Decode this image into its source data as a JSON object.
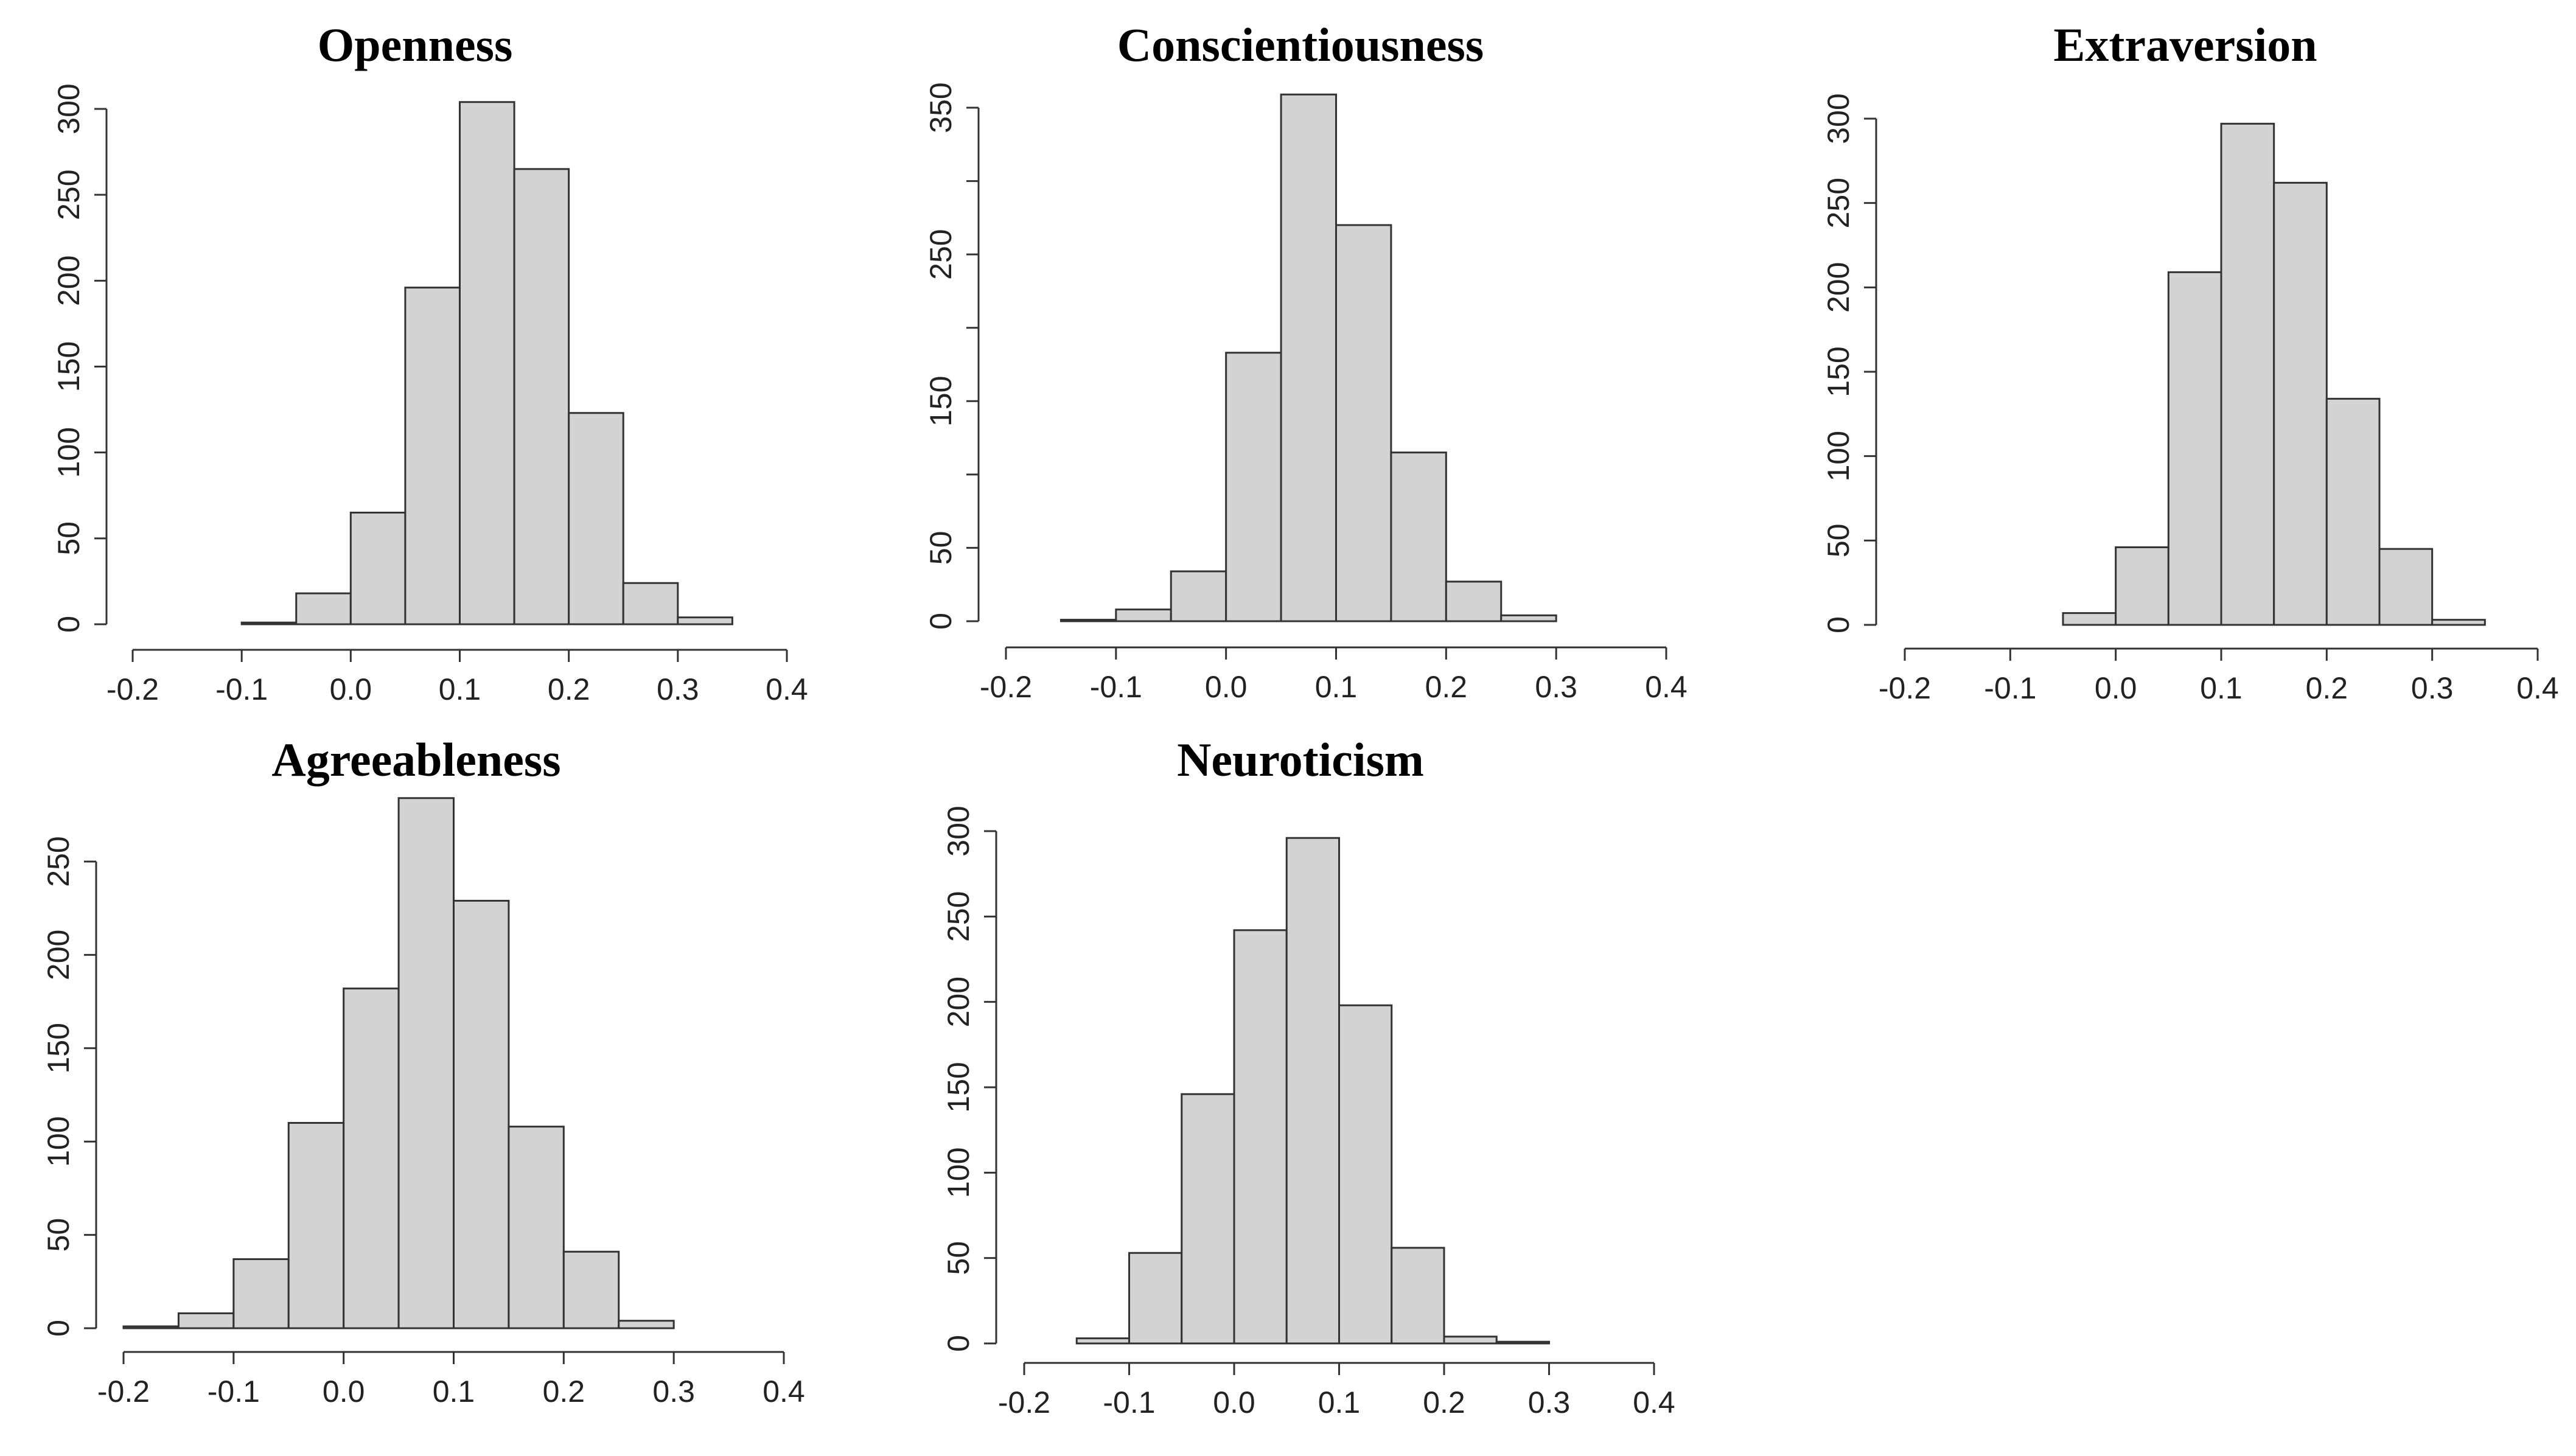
{
  "chart_data": [
    {
      "type": "bar",
      "title": "Openness",
      "xlabel": "",
      "ylabel": "",
      "bin_width": 0.05,
      "bins": [
        [
          -0.1,
          -0.05
        ],
        [
          -0.05,
          0.0
        ],
        [
          0.0,
          0.05
        ],
        [
          0.05,
          0.1
        ],
        [
          0.1,
          0.15
        ],
        [
          0.15,
          0.2
        ],
        [
          0.2,
          0.25
        ],
        [
          0.25,
          0.3
        ],
        [
          0.3,
          0.35
        ]
      ],
      "values": [
        1,
        18,
        65,
        196,
        304,
        265,
        123,
        24,
        4
      ],
      "xlim": [
        -0.2,
        0.4
      ],
      "ylim": [
        0,
        300
      ],
      "x_ticks": [
        "-0.2",
        "-0.1",
        "0.0",
        "0.1",
        "0.2",
        "0.3",
        "0.4"
      ],
      "y_ticks": [
        "0",
        "50",
        "100",
        "150",
        "200",
        "250",
        "300"
      ]
    },
    {
      "type": "bar",
      "title": "Conscientiousness",
      "xlabel": "",
      "ylabel": "",
      "bin_width": 0.05,
      "bins": [
        [
          -0.15,
          -0.1
        ],
        [
          -0.1,
          -0.05
        ],
        [
          -0.05,
          0.0
        ],
        [
          0.0,
          0.05
        ],
        [
          0.05,
          0.1
        ],
        [
          0.1,
          0.15
        ],
        [
          0.15,
          0.2
        ],
        [
          0.2,
          0.25
        ],
        [
          0.25,
          0.3
        ]
      ],
      "values": [
        1,
        8,
        34,
        183,
        359,
        270,
        115,
        27,
        4
      ],
      "xlim": [
        -0.2,
        0.4
      ],
      "ylim": [
        0,
        350
      ],
      "x_ticks": [
        "-0.2",
        "-0.1",
        "0.0",
        "0.1",
        "0.2",
        "0.3",
        "0.4"
      ],
      "y_ticks": [
        "0",
        "50",
        "",
        "150",
        "",
        "250",
        "",
        "350"
      ]
    },
    {
      "type": "bar",
      "title": "Extraversion",
      "xlabel": "",
      "ylabel": "",
      "bin_width": 0.05,
      "bins": [
        [
          -0.05,
          0.0
        ],
        [
          0.0,
          0.05
        ],
        [
          0.05,
          0.1
        ],
        [
          0.1,
          0.15
        ],
        [
          0.15,
          0.2
        ],
        [
          0.2,
          0.25
        ],
        [
          0.25,
          0.3
        ],
        [
          0.3,
          0.35
        ]
      ],
      "values": [
        7,
        46,
        209,
        297,
        262,
        134,
        45,
        3
      ],
      "xlim": [
        -0.2,
        0.4
      ],
      "ylim": [
        0,
        300
      ],
      "x_ticks": [
        "-0.2",
        "-0.1",
        "0.0",
        "0.1",
        "0.2",
        "0.3",
        "0.4"
      ],
      "y_ticks": [
        "0",
        "50",
        "100",
        "150",
        "200",
        "250",
        "300"
      ]
    },
    {
      "type": "bar",
      "title": "Agreeableness",
      "xlabel": "",
      "ylabel": "",
      "bin_width": 0.05,
      "bins": [
        [
          -0.2,
          -0.15
        ],
        [
          -0.15,
          -0.1
        ],
        [
          -0.1,
          -0.05
        ],
        [
          -0.05,
          0.0
        ],
        [
          0.0,
          0.05
        ],
        [
          0.05,
          0.1
        ],
        [
          0.1,
          0.15
        ],
        [
          0.15,
          0.2
        ],
        [
          0.2,
          0.25
        ],
        [
          0.25,
          0.3
        ]
      ],
      "values": [
        1,
        8,
        37,
        110,
        182,
        284,
        229,
        108,
        41,
        4
      ],
      "xlim": [
        -0.2,
        0.4
      ],
      "ylim": [
        0,
        250
      ],
      "x_ticks": [
        "-0.2",
        "-0.1",
        "0.0",
        "0.1",
        "0.2",
        "0.3",
        "0.4"
      ],
      "y_ticks": [
        "0",
        "50",
        "100",
        "150",
        "200",
        "250"
      ]
    },
    {
      "type": "bar",
      "title": "Neuroticism",
      "xlabel": "",
      "ylabel": "",
      "bin_width": 0.05,
      "bins": [
        [
          -0.15,
          -0.1
        ],
        [
          -0.1,
          -0.05
        ],
        [
          -0.05,
          0.0
        ],
        [
          0.0,
          0.05
        ],
        [
          0.05,
          0.1
        ],
        [
          0.1,
          0.15
        ],
        [
          0.15,
          0.2
        ],
        [
          0.2,
          0.25
        ],
        [
          0.25,
          0.3
        ]
      ],
      "values": [
        3,
        53,
        146,
        242,
        296,
        198,
        56,
        4,
        1
      ],
      "xlim": [
        -0.2,
        0.4
      ],
      "ylim": [
        0,
        300
      ],
      "x_ticks": [
        "-0.2",
        "-0.1",
        "0.0",
        "0.1",
        "0.2",
        "0.3",
        "0.4"
      ],
      "y_ticks": [
        "0",
        "50",
        "100",
        "150",
        "200",
        "250",
        "300"
      ]
    }
  ]
}
